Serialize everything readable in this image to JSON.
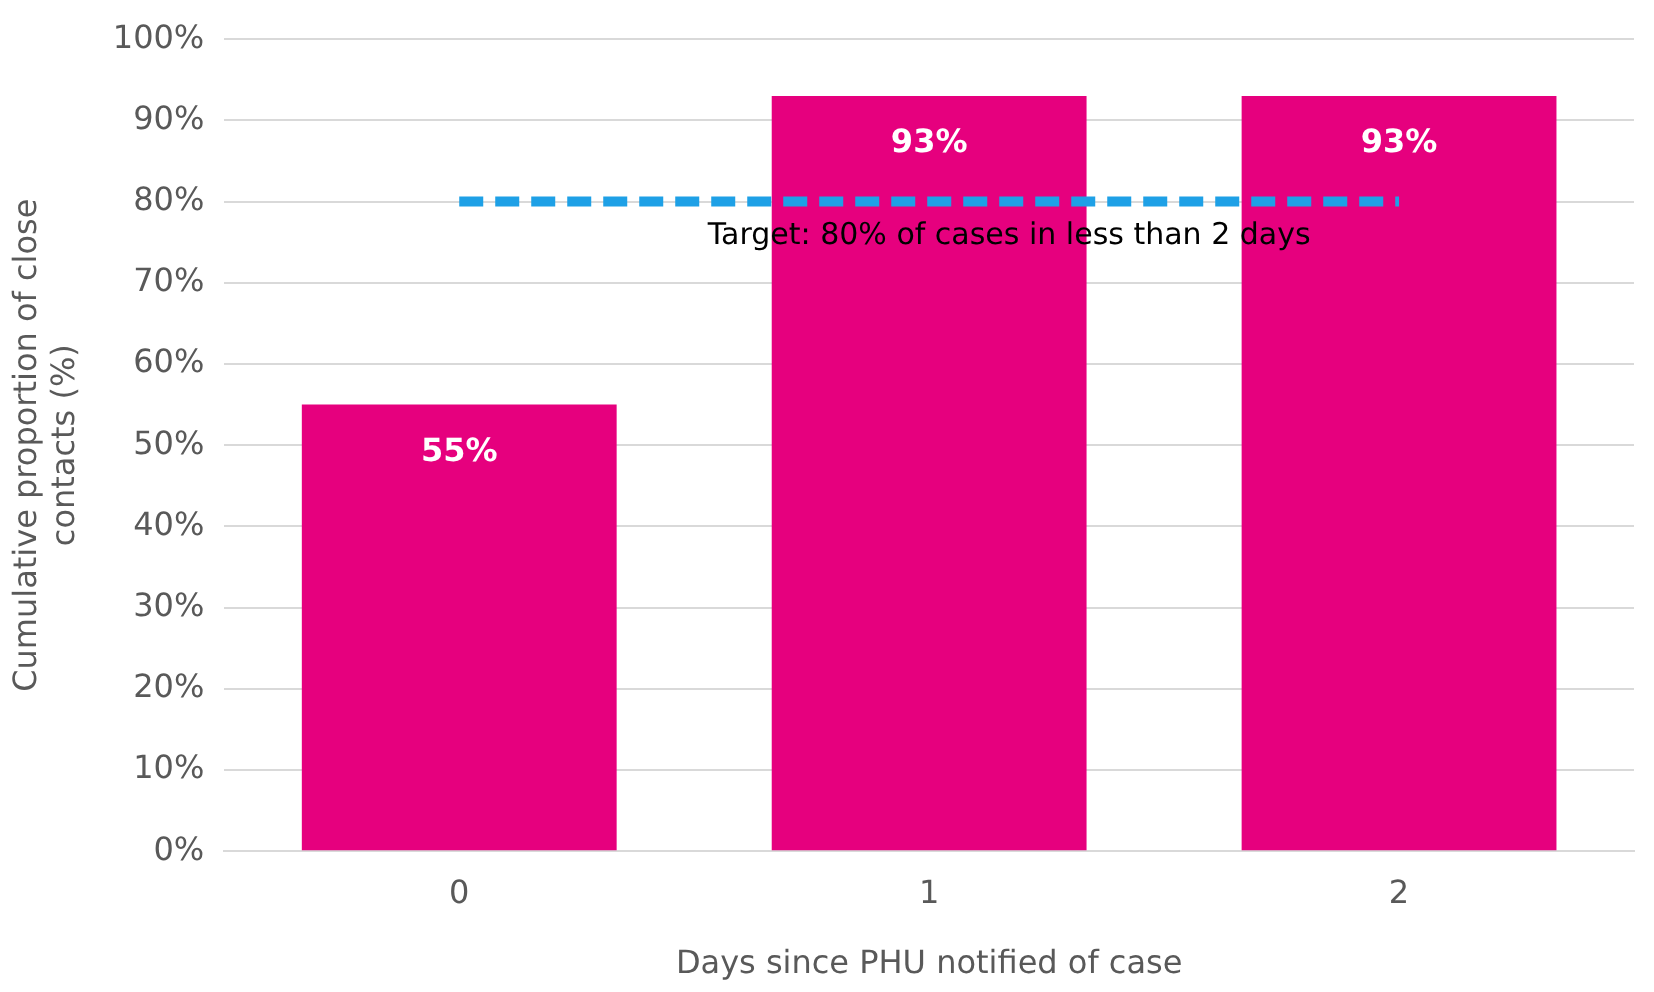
{
  "chart_data": {
    "type": "bar",
    "xlabel": "Days since PHU notified of case",
    "ylabel": "Cumulative proportion of close contacts (%)",
    "categories": [
      "0",
      "1",
      "2"
    ],
    "values": [
      55,
      93,
      93
    ],
    "color": "#e6007e",
    "value_labels": [
      "55%",
      "93%",
      "93%"
    ],
    "ylim": [
      0,
      100
    ],
    "yticks": [
      {
        "value": 0,
        "label": "0%"
      },
      {
        "value": 10,
        "label": "10%"
      },
      {
        "value": 20,
        "label": "20%"
      },
      {
        "value": 30,
        "label": "30%"
      },
      {
        "value": 40,
        "label": "40%"
      },
      {
        "value": 50,
        "label": "50%"
      },
      {
        "value": 60,
        "label": "60%"
      },
      {
        "value": 70,
        "label": "70%"
      },
      {
        "value": 80,
        "label": "80%"
      },
      {
        "value": 90,
        "label": "90%"
      },
      {
        "value": 100,
        "label": "100%"
      }
    ],
    "ref_lines": [
      {
        "axis": "y",
        "value": 80,
        "label": "Target: 80% of cases in less than 2 days",
        "color": "#1ea0e6",
        "line_style": "dashed"
      }
    ],
    "grid": "y",
    "legend": false
  }
}
